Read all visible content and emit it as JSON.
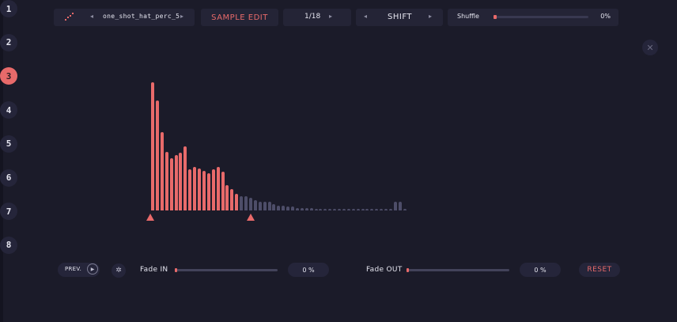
{
  "header": {
    "file": {
      "icon": "sample-file-icon",
      "name": "one_shot_hat_perc_5",
      "prev_icon": "chevron-left-icon",
      "next_icon": "chevron-right-icon"
    },
    "mode_label": "SAMPLE EDIT",
    "page": {
      "label": "1/18",
      "next_icon": "chevron-right-icon"
    },
    "shift": {
      "label": "SHIFT",
      "prev_icon": "chevron-left-icon",
      "next_icon": "chevron-right-icon"
    },
    "shuffle": {
      "label": "Shuffle",
      "value": "0%",
      "level": 0
    }
  },
  "pads": [
    "1",
    "2",
    "3",
    "4",
    "5",
    "6",
    "7",
    "8"
  ],
  "active_pad": "3",
  "close_icon": "close-icon",
  "waveform": {
    "selected_bars": [
      1.0,
      0.86,
      0.61,
      0.46,
      0.41,
      0.43,
      0.45,
      0.5,
      0.32,
      0.34,
      0.33,
      0.31,
      0.29,
      0.32,
      0.34,
      0.3,
      0.2,
      0.17,
      0.13
    ],
    "unselected_bars": [
      0.11,
      0.11,
      0.1,
      0.08,
      0.07,
      0.07,
      0.07,
      0.05,
      0.04,
      0.04,
      0.03,
      0.03,
      0.02,
      0.02,
      0.02,
      0.02,
      0.015,
      0.015,
      0.01,
      0.01,
      0.01,
      0.01,
      0.01,
      0.01,
      0.01,
      0.01,
      0.01,
      0.01,
      0.01,
      0.01,
      0.01,
      0.01,
      0.01,
      0.07,
      0.07,
      0.01
    ],
    "colors": {
      "selected": "#e86a6a",
      "unselected": "#4d4d68"
    }
  },
  "footer": {
    "preview": {
      "label": "PREV.",
      "play_icon": "play-icon"
    },
    "settings_icon": "gear-icon",
    "fade_in": {
      "label": "Fade IN",
      "value": "0 %",
      "level": 0
    },
    "fade_out": {
      "label": "Fade OUT",
      "value": "0 %",
      "level": 0
    },
    "reset_label": "RESET"
  },
  "colors": {
    "accent": "#e86a6a",
    "background": "#1b1b29",
    "panel": "#242436"
  }
}
